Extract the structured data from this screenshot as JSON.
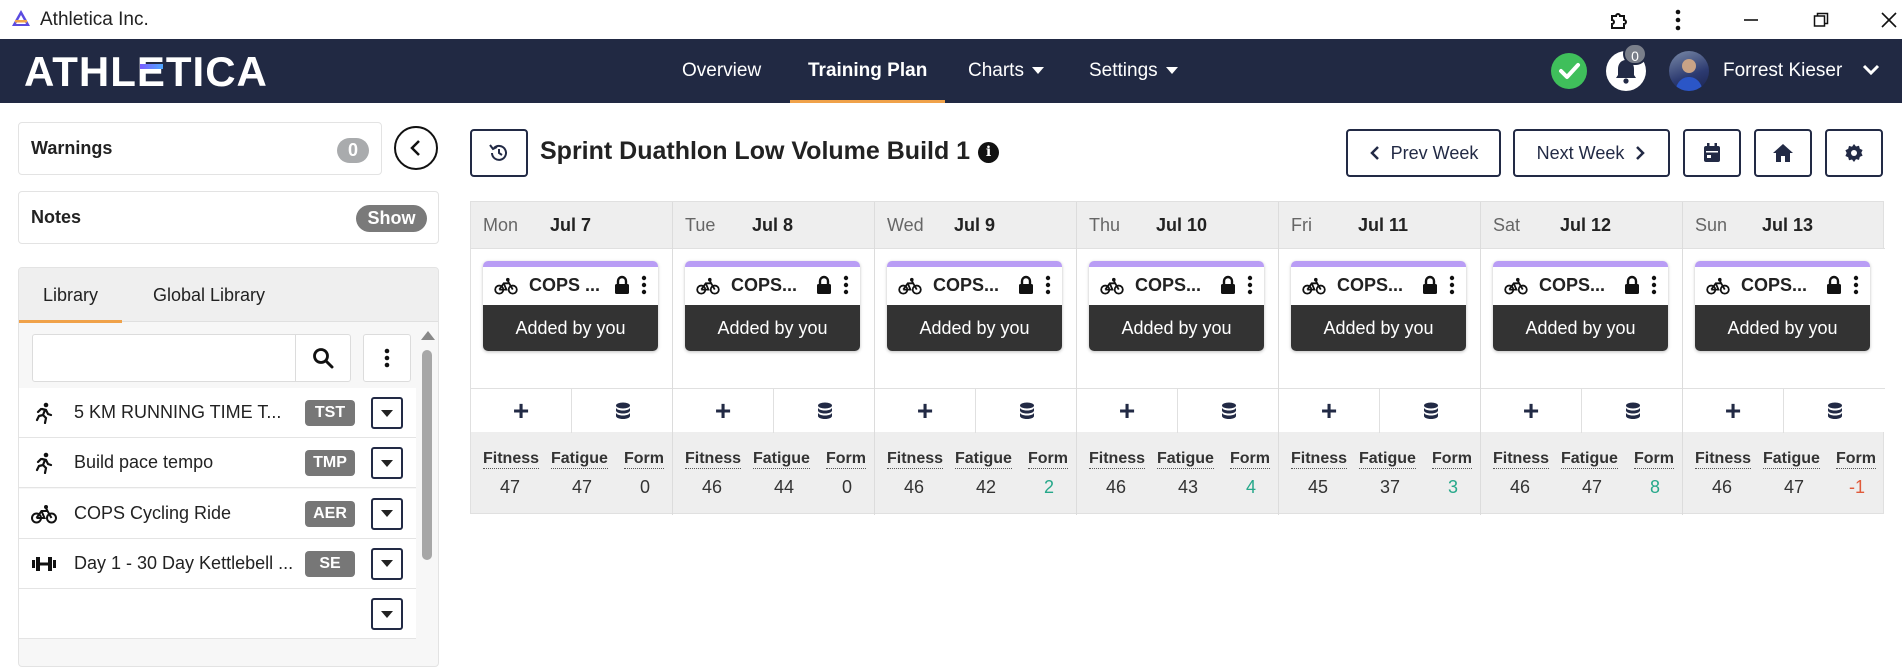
{
  "window": {
    "title": "Athletica Inc."
  },
  "brand": {
    "prefix": "ATHL",
    "accent": "E",
    "suffix": "TICA"
  },
  "nav": {
    "overview": "Overview",
    "training_plan": "Training Plan",
    "charts": "Charts",
    "settings": "Settings",
    "notifications_count": "0",
    "user_name": "Forrest Kieser"
  },
  "sidebar": {
    "warnings_label": "Warnings",
    "warnings_count": "0",
    "notes_label": "Notes",
    "notes_toggle": "Show",
    "library": {
      "tabs": [
        "Library",
        "Global Library"
      ],
      "search_placeholder": "",
      "items": [
        {
          "name": "5 KM RUNNING TIME T...",
          "tag": "TST",
          "icon": "running-icon"
        },
        {
          "name": "Build pace tempo",
          "tag": "TMP",
          "icon": "running-icon"
        },
        {
          "name": "COPS Cycling Ride",
          "tag": "AER",
          "icon": "cycling-icon"
        },
        {
          "name": "Day 1 - 30 Day Kettlebell ...",
          "tag": "SE",
          "icon": "dumbbell-icon"
        }
      ]
    }
  },
  "plan": {
    "title": "Sprint Duathlon Low Volume Build 1",
    "prev_week": "Prev Week",
    "next_week": "Next Week"
  },
  "metric_labels": {
    "fitness": "Fitness",
    "fatigue": "Fatigue",
    "form": "Form"
  },
  "days": [
    {
      "dow": "Mon",
      "date": "Jul 7",
      "workout": "COPS ...",
      "added": "Added by you",
      "fitness": "47",
      "fatigue": "47",
      "form": "0",
      "form_state": "neutral"
    },
    {
      "dow": "Tue",
      "date": "Jul 8",
      "workout": "COPS...",
      "added": "Added by you",
      "fitness": "46",
      "fatigue": "44",
      "form": "0",
      "form_state": "neutral"
    },
    {
      "dow": "Wed",
      "date": "Jul 9",
      "workout": "COPS...",
      "added": "Added by you",
      "fitness": "46",
      "fatigue": "42",
      "form": "2",
      "form_state": "pos"
    },
    {
      "dow": "Thu",
      "date": "Jul 10",
      "workout": "COPS...",
      "added": "Added by you",
      "fitness": "46",
      "fatigue": "43",
      "form": "4",
      "form_state": "pos"
    },
    {
      "dow": "Fri",
      "date": "Jul 11",
      "workout": "COPS...",
      "added": "Added by you",
      "fitness": "45",
      "fatigue": "37",
      "form": "3",
      "form_state": "pos"
    },
    {
      "dow": "Sat",
      "date": "Jul 12",
      "workout": "COPS...",
      "added": "Added by you",
      "fitness": "46",
      "fatigue": "47",
      "form": "8",
      "form_state": "pos"
    },
    {
      "dow": "Sun",
      "date": "Jul 13",
      "workout": "COPS...",
      "added": "Added by you",
      "fitness": "46",
      "fatigue": "47",
      "form": "-1",
      "form_state": "neg"
    }
  ],
  "colors": {
    "nav_bg": "#212943",
    "accent": "#f0a24a",
    "workout_bar": "#b99df5",
    "form_positive": "#26a88a",
    "form_negative": "#e05a3a"
  }
}
